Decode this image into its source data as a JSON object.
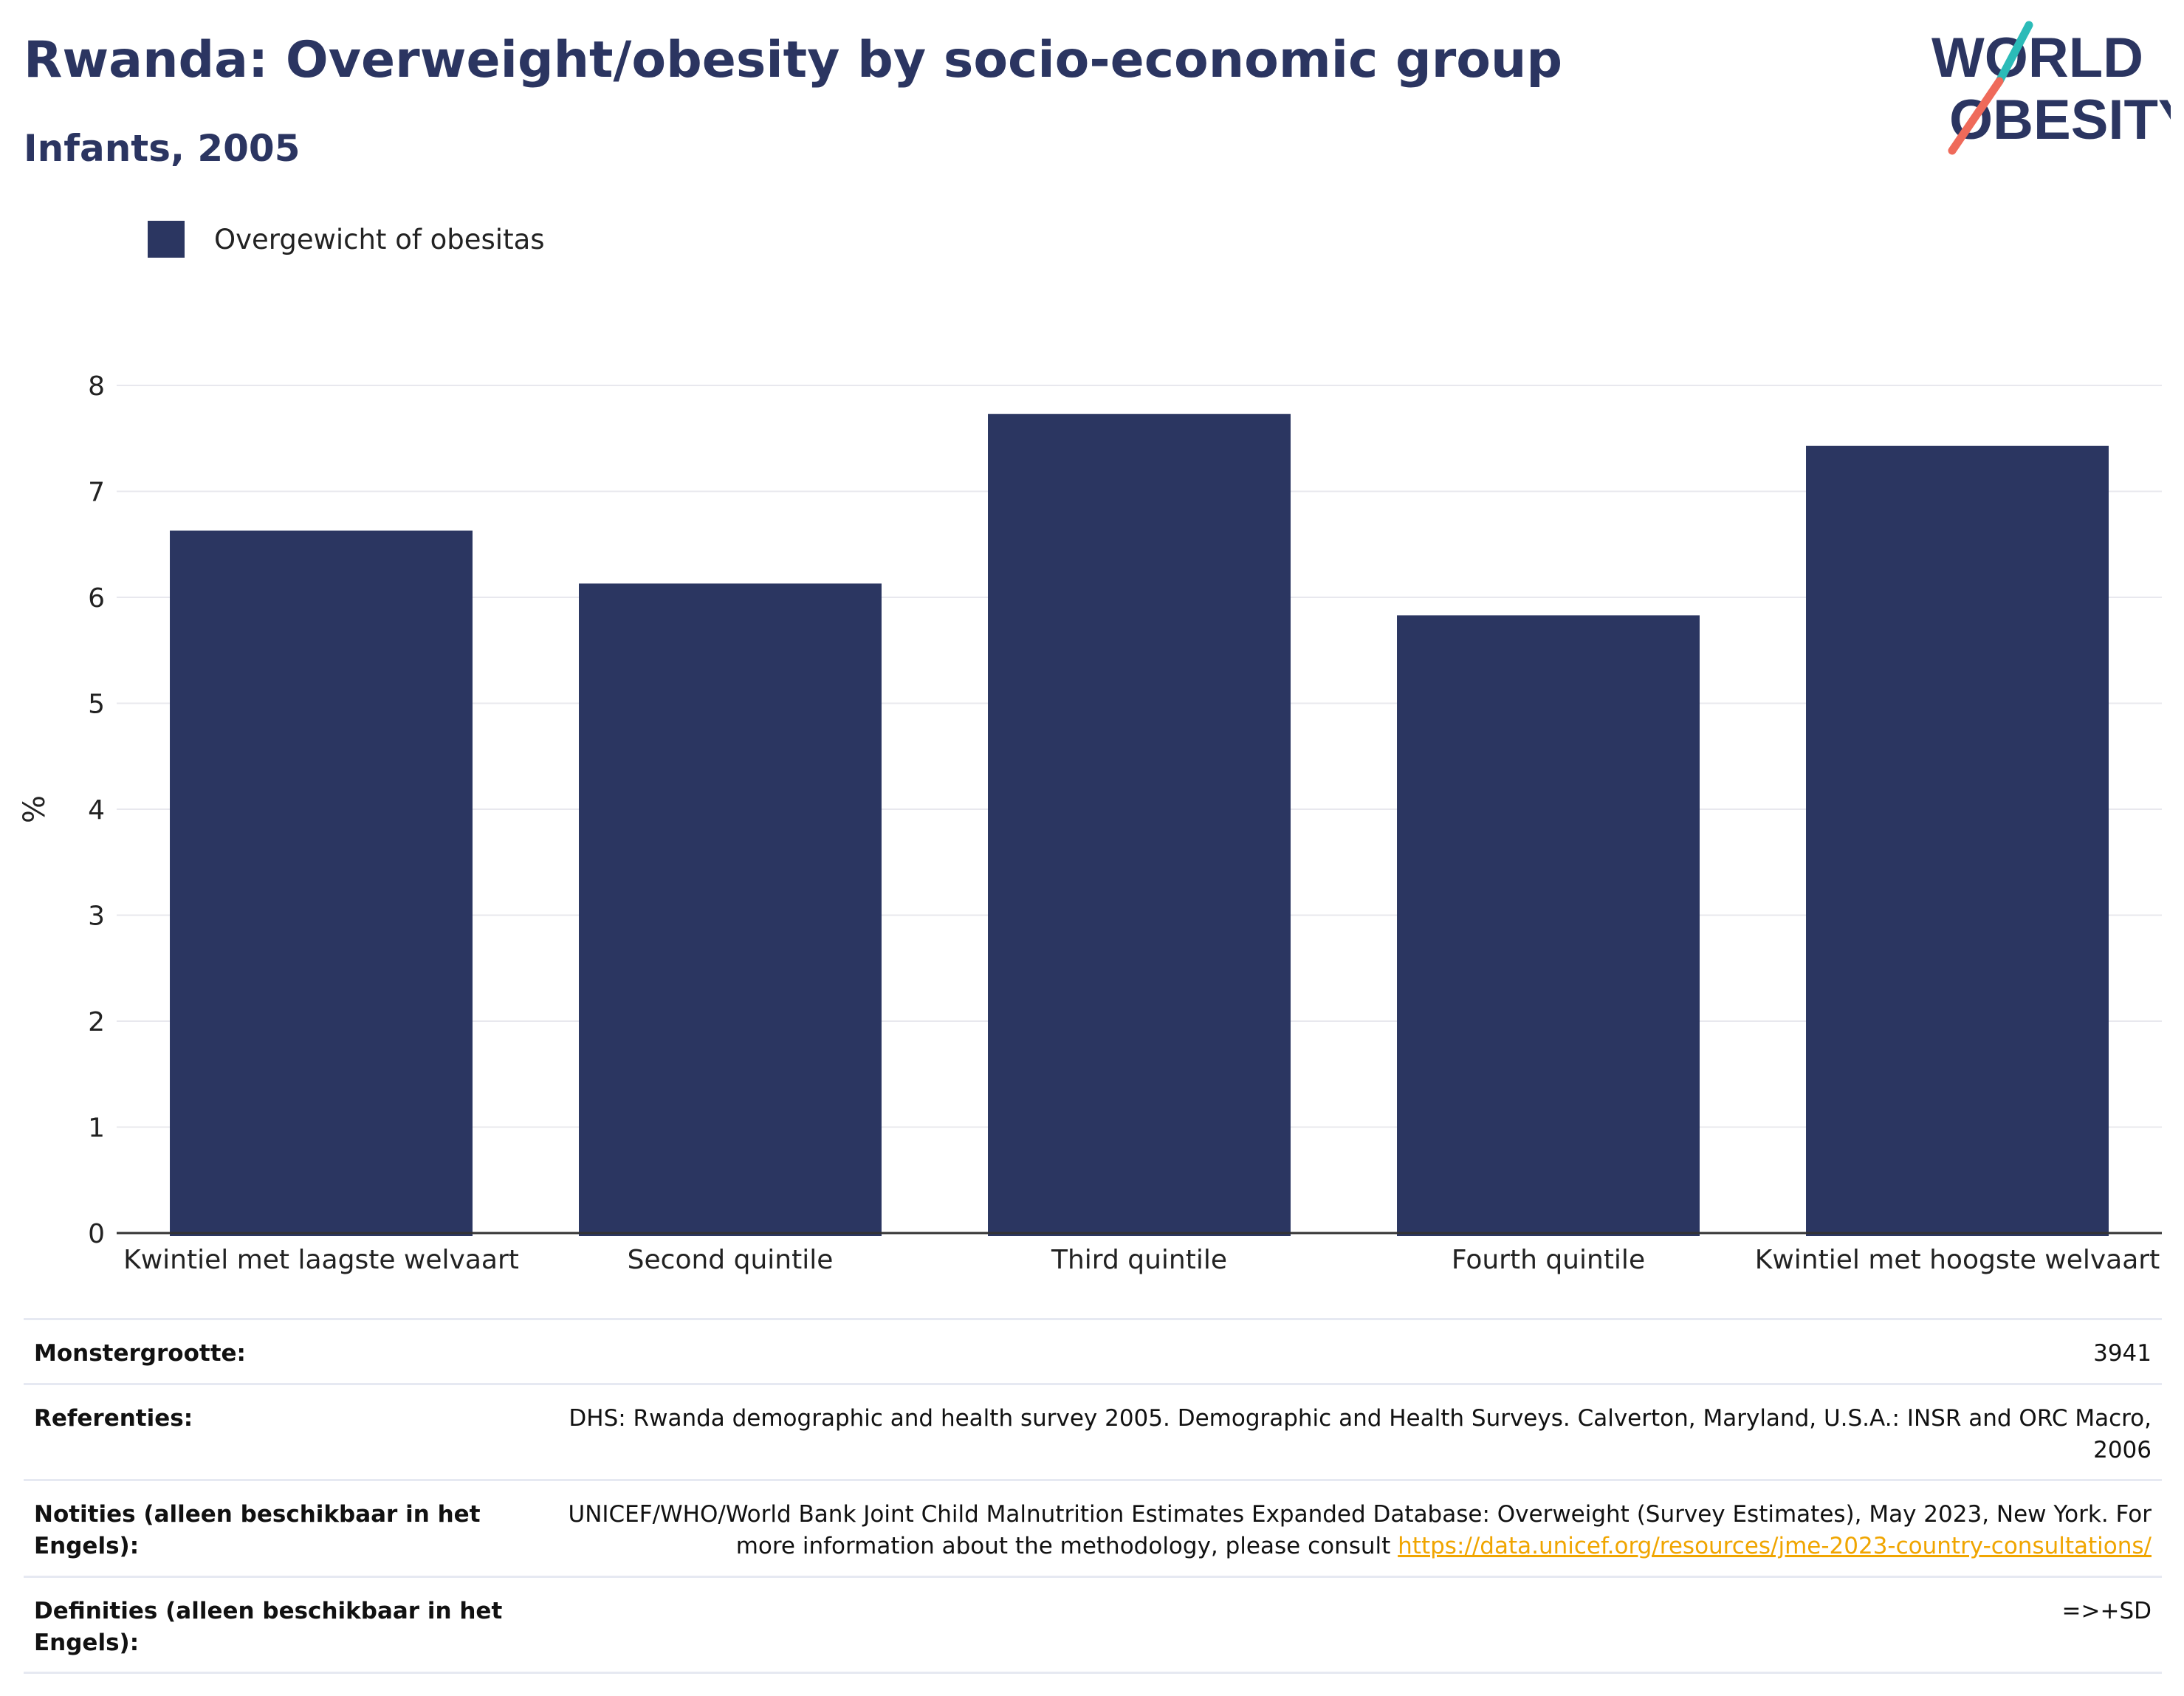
{
  "header": {
    "title": "Rwanda: Overweight/obesity by socio-economic group",
    "subtitle": "Infants, 2005"
  },
  "logo": {
    "line1": "WORLD",
    "line2": "OBESITY",
    "text_color": "#2b3561",
    "slash_top_color": "#2bbbb8",
    "slash_bottom_color": "#ef6a5a"
  },
  "legend": {
    "label": "Overgewicht of obesitas",
    "color": "#2b3661"
  },
  "chart_data": {
    "type": "bar",
    "categories": [
      "Kwintiel met laagste welvaart",
      "Second quintile",
      "Third quintile",
      "Fourth quintile",
      "Kwintiel met hoogste welvaart"
    ],
    "series": [
      {
        "name": "Overgewicht of obesitas",
        "values": [
          6.63,
          6.13,
          7.73,
          5.83,
          7.43
        ],
        "color": "#2b3661"
      }
    ],
    "ylabel": "%",
    "xlabel": "",
    "ylim": [
      0,
      8
    ],
    "yticks": [
      0,
      1,
      2,
      3,
      4,
      5,
      6,
      7,
      8
    ],
    "grid": true,
    "legend_position": "top-left"
  },
  "meta": {
    "rows": [
      {
        "label": "Monstergrootte:",
        "value": "3941"
      },
      {
        "label": "Referenties:",
        "value": "DHS: Rwanda demographic and health survey 2005. Demographic and Health Surveys. Calverton, Maryland, U.S.A.: INSR and ORC Macro, 2006"
      },
      {
        "label": "Notities (alleen beschikbaar in het Engels):",
        "value": "UNICEF/WHO/World Bank Joint Child Malnutrition Estimates Expanded Database: Overweight (Survey Estimates), May 2023, New York. For more information about the methodology, please consult ",
        "link": "https://data.unicef.org/resources/jme-2023-country-consultations/"
      },
      {
        "label": "Definities (alleen beschikbaar in het Engels):",
        "value": "=>+SD"
      }
    ]
  }
}
